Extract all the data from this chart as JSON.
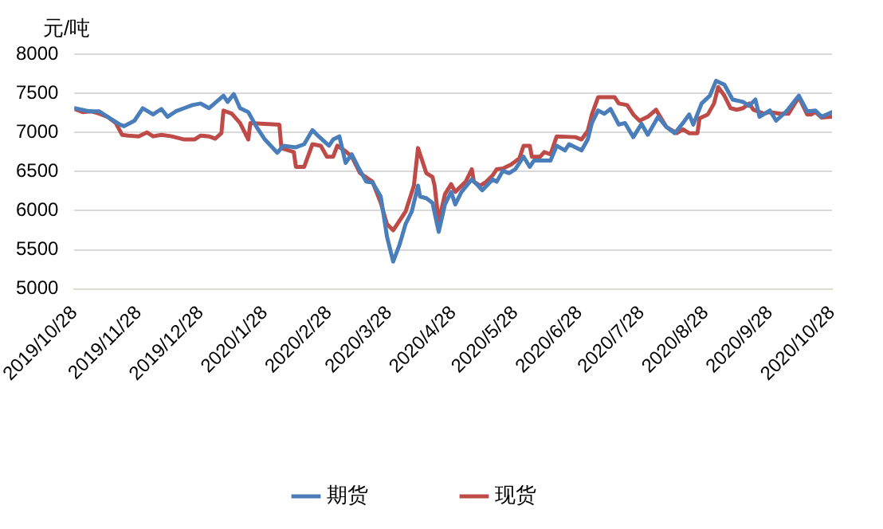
{
  "chart_data": {
    "type": "line",
    "ylabel": "元/吨",
    "xlim": [
      "2019-10-28",
      "2020-10-28"
    ],
    "xticks": [
      {
        "value": "2019-10-28",
        "label": "2019/10/28"
      },
      {
        "value": "2019-11-28",
        "label": "2019/11/28"
      },
      {
        "value": "2019-12-28",
        "label": "2019/12/28"
      },
      {
        "value": "2020-01-28",
        "label": "2020/1/28"
      },
      {
        "value": "2020-02-28",
        "label": "2020/2/28"
      },
      {
        "value": "2020-03-28",
        "label": "2020/3/28"
      },
      {
        "value": "2020-04-28",
        "label": "2020/4/28"
      },
      {
        "value": "2020-05-28",
        "label": "2020/5/28"
      },
      {
        "value": "2020-06-28",
        "label": "2020/6/28"
      },
      {
        "value": "2020-07-28",
        "label": "2020/7/28"
      },
      {
        "value": "2020-08-28",
        "label": "2020/8/28"
      },
      {
        "value": "2020-09-28",
        "label": "2020/9/28"
      },
      {
        "value": "2020-10-28",
        "label": "2020/10/28"
      }
    ],
    "ylim": [
      5000,
      8000
    ],
    "yticks": [
      5000,
      5500,
      6000,
      6500,
      7000,
      7500,
      8000
    ],
    "grid": "y",
    "legend": "bottom",
    "marker": "none",
    "line_style": "solid",
    "series": [
      {
        "name": "期货",
        "color": "#4a7ebb",
        "x": [
          "2019-10-28",
          "2019-11-04",
          "2019-11-09",
          "2019-11-13",
          "2019-11-19",
          "2019-11-21",
          "2019-11-26",
          "2019-11-30",
          "2019-12-05",
          "2019-12-09",
          "2019-12-12",
          "2019-12-16",
          "2019-12-20",
          "2019-12-24",
          "2019-12-28",
          "2020-01-01",
          "2020-01-05",
          "2020-01-08",
          "2020-01-10",
          "2020-01-13",
          "2020-01-16",
          "2020-01-20",
          "2020-01-24",
          "2020-01-28",
          "2020-02-03",
          "2020-02-06",
          "2020-02-12",
          "2020-02-16",
          "2020-02-20",
          "2020-02-23",
          "2020-02-28",
          "2020-03-01",
          "2020-03-04",
          "2020-03-07",
          "2020-03-10",
          "2020-03-13",
          "2020-03-17",
          "2020-03-20",
          "2020-03-24",
          "2020-03-27",
          "2020-03-30",
          "2020-04-02",
          "2020-04-05",
          "2020-04-08",
          "2020-04-11",
          "2020-04-12",
          "2020-04-15",
          "2020-04-18",
          "2020-04-21",
          "2020-04-24",
          "2020-04-27",
          "2020-04-29",
          "2020-05-02",
          "2020-05-07",
          "2020-05-10",
          "2020-05-12",
          "2020-05-17",
          "2020-05-19",
          "2020-05-22",
          "2020-05-25",
          "2020-05-28",
          "2020-06-01",
          "2020-06-04",
          "2020-06-06",
          "2020-06-14",
          "2020-06-17",
          "2020-06-21",
          "2020-06-23",
          "2020-06-29",
          "2020-07-02",
          "2020-07-04",
          "2020-07-07",
          "2020-07-10",
          "2020-07-13",
          "2020-07-17",
          "2020-07-20",
          "2020-07-24",
          "2020-07-28",
          "2020-07-31",
          "2020-08-05",
          "2020-08-09",
          "2020-08-13",
          "2020-08-17",
          "2020-08-20",
          "2020-08-22",
          "2020-08-26",
          "2020-08-30",
          "2020-09-02",
          "2020-09-06",
          "2020-09-10",
          "2020-09-15",
          "2020-09-18",
          "2020-09-21",
          "2020-09-23",
          "2020-09-28",
          "2020-10-01",
          "2020-10-06",
          "2020-10-12",
          "2020-10-16",
          "2020-10-20",
          "2020-10-23",
          "2020-10-28"
        ],
        "values": [
          7310,
          7270,
          7270,
          7200,
          7100,
          7080,
          7150,
          7310,
          7230,
          7300,
          7200,
          7270,
          7310,
          7350,
          7370,
          7310,
          7400,
          7470,
          7390,
          7490,
          7310,
          7260,
          7070,
          6910,
          6740,
          6830,
          6810,
          6850,
          7030,
          6950,
          6830,
          6910,
          6950,
          6610,
          6720,
          6560,
          6370,
          6360,
          6180,
          5670,
          5350,
          5560,
          5830,
          5990,
          6320,
          6180,
          6160,
          6100,
          5730,
          6080,
          6240,
          6080,
          6240,
          6400,
          6320,
          6260,
          6400,
          6370,
          6510,
          6480,
          6530,
          6690,
          6560,
          6640,
          6640,
          6830,
          6770,
          6850,
          6770,
          6910,
          7120,
          7280,
          7240,
          7300,
          7100,
          7120,
          6940,
          7110,
          6970,
          7200,
          7070,
          6990,
          7120,
          7230,
          7100,
          7370,
          7470,
          7660,
          7610,
          7420,
          7390,
          7340,
          7420,
          7200,
          7280,
          7150,
          7270,
          7470,
          7270,
          7280,
          7200,
          7260
        ]
      },
      {
        "name": "现货",
        "color": "#be4b48",
        "x": [
          "2019-10-28",
          "2019-11-01",
          "2019-11-05",
          "2019-11-09",
          "2019-11-13",
          "2019-11-17",
          "2019-11-20",
          "2019-11-23",
          "2019-11-28",
          "2019-12-02",
          "2019-12-05",
          "2019-12-09",
          "2019-12-14",
          "2019-12-20",
          "2019-12-25",
          "2019-12-28",
          "2020-01-01",
          "2020-01-04",
          "2020-01-07",
          "2020-01-08",
          "2020-01-12",
          "2020-01-16",
          "2020-01-20",
          "2020-01-21",
          "2020-02-04",
          "2020-02-05",
          "2020-02-11",
          "2020-02-12",
          "2020-02-16",
          "2020-02-20",
          "2020-02-24",
          "2020-02-27",
          "2020-03-01",
          "2020-03-03",
          "2020-03-07",
          "2020-03-10",
          "2020-03-14",
          "2020-03-20",
          "2020-03-24",
          "2020-03-27",
          "2020-03-30",
          "2020-04-05",
          "2020-04-09",
          "2020-04-11",
          "2020-04-15",
          "2020-04-18",
          "2020-04-19",
          "2020-04-21",
          "2020-04-24",
          "2020-04-27",
          "2020-04-29",
          "2020-05-04",
          "2020-05-07",
          "2020-05-08",
          "2020-05-11",
          "2020-05-14",
          "2020-05-17",
          "2020-05-19",
          "2020-05-22",
          "2020-05-26",
          "2020-05-30",
          "2020-06-01",
          "2020-06-04",
          "2020-06-05",
          "2020-06-09",
          "2020-06-11",
          "2020-06-14",
          "2020-06-17",
          "2020-06-26",
          "2020-06-29",
          "2020-07-02",
          "2020-07-04",
          "2020-07-07",
          "2020-07-15",
          "2020-07-17",
          "2020-07-21",
          "2020-07-24",
          "2020-07-27",
          "2020-07-31",
          "2020-08-04",
          "2020-08-06",
          "2020-08-09",
          "2020-08-14",
          "2020-08-17",
          "2020-08-20",
          "2020-08-24",
          "2020-08-25",
          "2020-08-29",
          "2020-09-01",
          "2020-09-03",
          "2020-09-06",
          "2020-09-09",
          "2020-09-12",
          "2020-09-15",
          "2020-09-18",
          "2020-09-20",
          "2020-09-22",
          "2020-09-25",
          "2020-09-28",
          "2020-10-03",
          "2020-10-07",
          "2020-10-12",
          "2020-10-16",
          "2020-10-18",
          "2020-10-20",
          "2020-10-23",
          "2020-10-28"
        ],
        "values": [
          7300,
          7260,
          7270,
          7240,
          7200,
          7120,
          6970,
          6960,
          6950,
          7000,
          6950,
          6970,
          6950,
          6910,
          6910,
          6960,
          6950,
          6920,
          6990,
          7280,
          7240,
          7120,
          6910,
          7120,
          7100,
          6800,
          6750,
          6560,
          6560,
          6850,
          6830,
          6690,
          6690,
          6830,
          6760,
          6690,
          6480,
          6370,
          6100,
          5830,
          5750,
          5990,
          6320,
          6800,
          6480,
          6430,
          6320,
          5860,
          6210,
          6340,
          6240,
          6370,
          6530,
          6370,
          6320,
          6370,
          6450,
          6530,
          6540,
          6590,
          6670,
          6830,
          6830,
          6690,
          6690,
          6750,
          6720,
          6950,
          6940,
          6910,
          7020,
          7230,
          7450,
          7450,
          7370,
          7350,
          7230,
          7150,
          7200,
          7290,
          7200,
          7070,
          6990,
          7040,
          6990,
          6990,
          7180,
          7230,
          7370,
          7580,
          7470,
          7310,
          7290,
          7310,
          7370,
          7290,
          7270,
          7240,
          7260,
          7240,
          7240,
          7450,
          7230,
          7230,
          7260,
          7190,
          7200
        ]
      }
    ]
  }
}
